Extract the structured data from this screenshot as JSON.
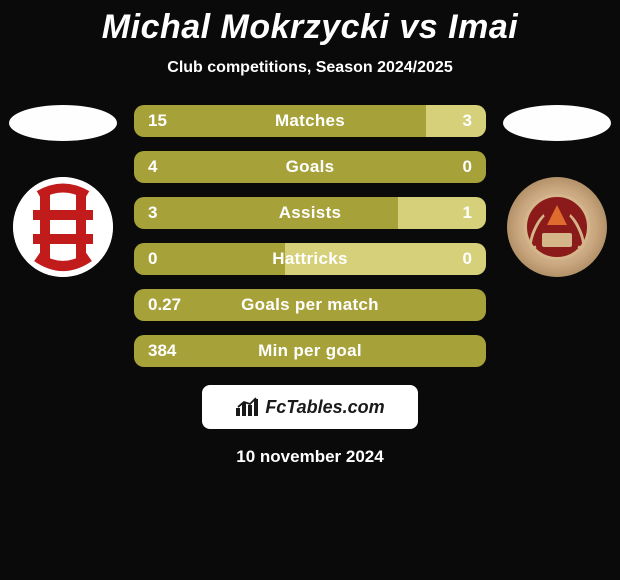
{
  "title": "Michal Mokrzycki vs Imai",
  "subtitle": "Club competitions, Season 2024/2025",
  "date": "10 november 2024",
  "footer_brand": "FcTables.com",
  "colors": {
    "left_bar": "#a7a13a",
    "right_bar": "#d6d07a",
    "text": "#ffffff",
    "background": "#0a0a0a"
  },
  "rows": [
    {
      "label": "Matches",
      "left": "15",
      "right": "3",
      "left_pct": 83,
      "right_pct": 17
    },
    {
      "label": "Goals",
      "left": "4",
      "right": "0",
      "left_pct": 100,
      "right_pct": 0
    },
    {
      "label": "Assists",
      "left": "3",
      "right": "1",
      "left_pct": 75,
      "right_pct": 25
    },
    {
      "label": "Hattricks",
      "left": "0",
      "right": "0",
      "left_pct": 50,
      "right_pct": 50
    },
    {
      "label": "Goals per match",
      "left": "0.27",
      "right": "",
      "left_pct": 100,
      "right_pct": 0
    },
    {
      "label": "Min per goal",
      "left": "384",
      "right": "",
      "left_pct": 100,
      "right_pct": 0
    }
  ]
}
